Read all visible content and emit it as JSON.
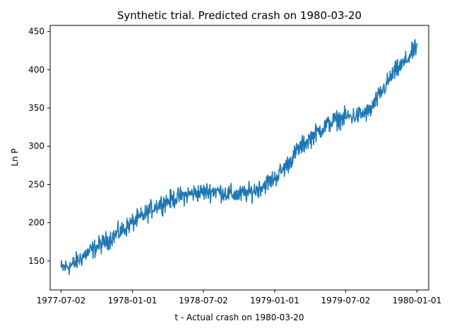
{
  "chart_data": {
    "type": "line",
    "title": "Synthetic trial. Predicted crash on 1980-03-20",
    "xlabel": "t - Actual crash on 1980-03-20",
    "ylabel": "Ln P",
    "x_range": [
      "1977-06-04",
      "1980-01-31"
    ],
    "ylim": [
      112,
      458
    ],
    "x_ticks": [
      "1977-07-02",
      "1978-01-01",
      "1978-07-02",
      "1979-01-01",
      "1979-07-02",
      "1980-01-01"
    ],
    "y_ticks": [
      150,
      200,
      250,
      300,
      350,
      400,
      450
    ],
    "grid": false,
    "legend": "none",
    "series": [
      {
        "color": "#1f77b4",
        "x": [
          "1977-07-02",
          "1977-08-01",
          "1977-09-01",
          "1977-10-01",
          "1977-11-01",
          "1977-12-01",
          "1978-01-01",
          "1978-02-01",
          "1978-03-01",
          "1978-04-01",
          "1978-05-01",
          "1978-06-01",
          "1978-07-02",
          "1978-08-01",
          "1978-09-01",
          "1978-10-01",
          "1978-11-01",
          "1978-12-01",
          "1979-01-01",
          "1979-02-01",
          "1979-03-01",
          "1979-04-01",
          "1979-05-01",
          "1979-06-01",
          "1979-07-02",
          "1979-08-01",
          "1979-09-01",
          "1979-10-01",
          "1979-11-01",
          "1979-12-01",
          "1980-01-01"
        ],
        "values": [
          140,
          145,
          158,
          168,
          178,
          188,
          200,
          210,
          222,
          228,
          234,
          238,
          240,
          242,
          238,
          236,
          240,
          248,
          258,
          275,
          295,
          310,
          323,
          333,
          338,
          340,
          345,
          370,
          395,
          410,
          430
        ]
      }
    ]
  }
}
